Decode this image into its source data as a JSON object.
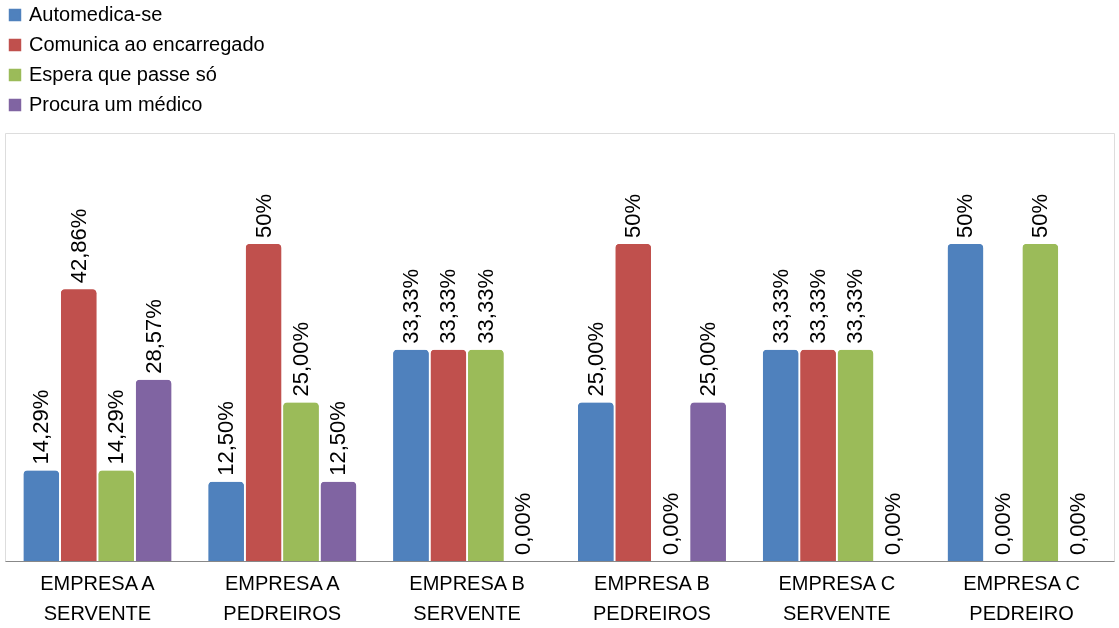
{
  "chart_data": {
    "type": "bar",
    "categories": [
      "EMPRESA A SERVENTE",
      "EMPRESA A PEDREIROS",
      "EMPRESA B SERVENTE",
      "EMPRESA B PEDREIROS",
      "EMPRESA C SERVENTE",
      "EMPRESA C PEDREIRO"
    ],
    "series": [
      {
        "name": "Automedica-se",
        "color": "#4f81bd",
        "values": [
          14.29,
          12.5,
          33.33,
          25,
          33.33,
          50
        ],
        "value_labels": [
          "14,29%",
          "12,50%",
          "33,33%",
          "25,00%",
          "33,33%",
          "50%"
        ]
      },
      {
        "name": "Comunica ao encarregado",
        "color": "#c0504d",
        "values": [
          42.86,
          50,
          33.33,
          50,
          33.33,
          0
        ],
        "value_labels": [
          "42,86%",
          "50%",
          "33,33%",
          "50%",
          "33,33%",
          "0,00%"
        ]
      },
      {
        "name": "Espera que passe só",
        "color": "#9bbb59",
        "values": [
          14.29,
          25,
          33.33,
          0,
          33.33,
          50
        ],
        "value_labels": [
          "14,29%",
          "25,00%",
          "33,33%",
          "0,00%",
          "33,33%",
          "50%"
        ]
      },
      {
        "name": "Procura um médico",
        "color": "#8064a2",
        "values": [
          28.57,
          12.5,
          0,
          25,
          0,
          0
        ],
        "value_labels": [
          "28,57%",
          "12,50%",
          "0,00%",
          "25,00%",
          "0,00%",
          "0,00%"
        ]
      }
    ],
    "legend": "top left"
  }
}
